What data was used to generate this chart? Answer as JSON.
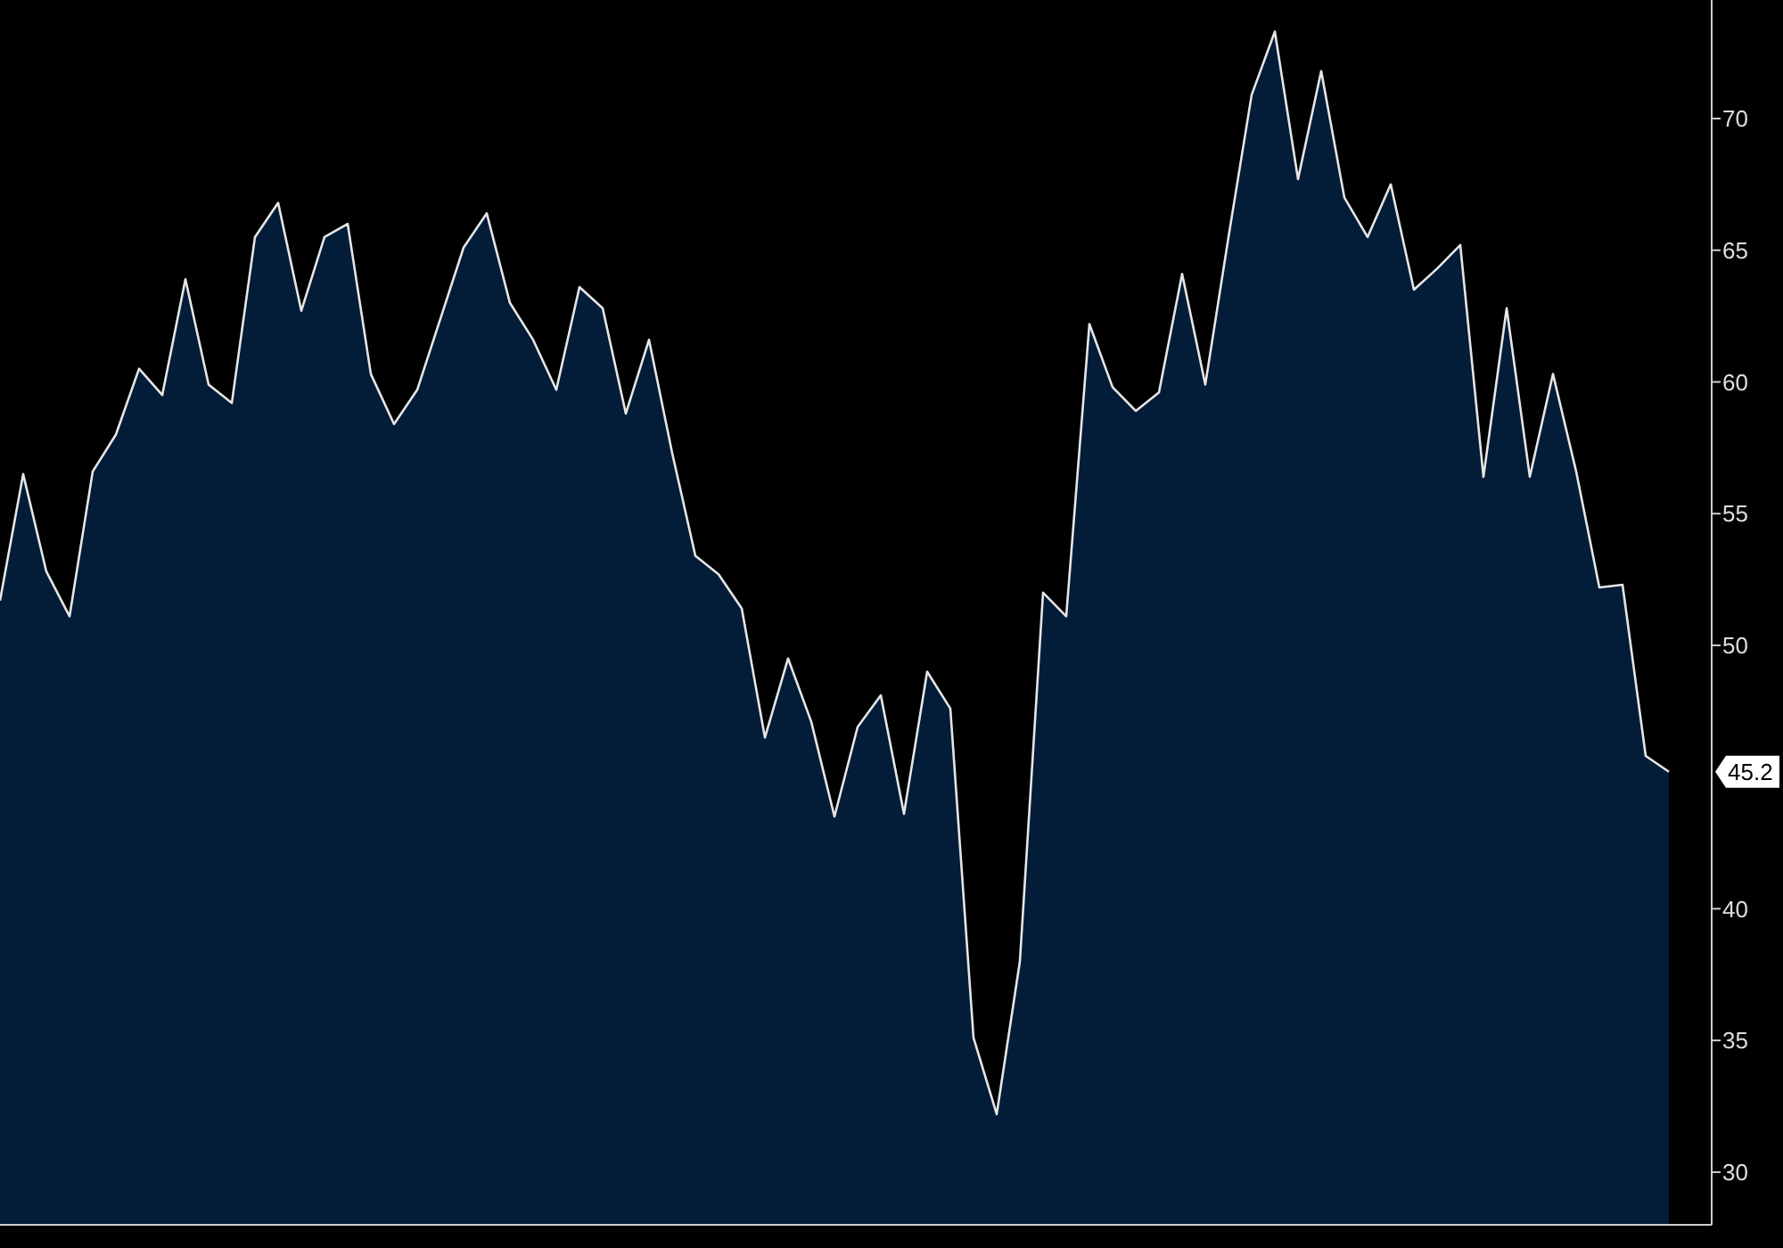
{
  "chart_data": {
    "type": "area",
    "categories": [
      null,
      null,
      null,
      null,
      null,
      null,
      null,
      null,
      null,
      null,
      null,
      null,
      null,
      null,
      null,
      null,
      null,
      null,
      null,
      null,
      null,
      null,
      null,
      null,
      null,
      null,
      null,
      null,
      null,
      null,
      null,
      null,
      null,
      null,
      null,
      null,
      null,
      null,
      null,
      null,
      null,
      null,
      null,
      null,
      null,
      null,
      null,
      null,
      null,
      null,
      null,
      null,
      null,
      null,
      null,
      null,
      null,
      null,
      null,
      null,
      null,
      null,
      null,
      null,
      null,
      null,
      null,
      null,
      null,
      null,
      null,
      null,
      null
    ],
    "series": [
      {
        "color": "#031c38",
        "values": [
          51.7,
          56.5,
          52.8,
          51.1,
          56.6,
          58.0,
          60.5,
          59.5,
          63.9,
          59.9,
          59.2,
          65.5,
          66.8,
          62.7,
          65.5,
          66.0,
          60.3,
          58.4,
          59.7,
          62.4,
          65.1,
          66.4,
          63.0,
          61.6,
          59.7,
          63.6,
          62.8,
          58.8,
          61.6,
          57.3,
          53.4,
          52.7,
          51.4,
          46.5,
          49.5,
          47.1,
          43.5,
          46.9,
          48.1,
          43.6,
          49.0,
          47.6,
          35.1,
          32.2,
          38.0,
          52.0,
          51.1,
          62.2,
          59.8,
          58.9,
          59.6,
          64.1,
          59.9,
          65.5,
          70.9,
          73.3,
          67.7,
          71.8,
          67.0,
          65.5,
          67.5,
          63.5,
          64.3,
          65.2,
          56.4,
          62.8,
          56.4,
          60.3,
          56.6,
          52.2,
          52.3,
          45.8,
          45.2
        ]
      }
    ],
    "ylim": [
      28,
      74.5
    ],
    "yticks": [
      30,
      35,
      40,
      50,
      55,
      60,
      65,
      70
    ],
    "tick_labels": "y",
    "annotations": [
      {
        "text": "45.2",
        "y": 45.2
      }
    ]
  }
}
